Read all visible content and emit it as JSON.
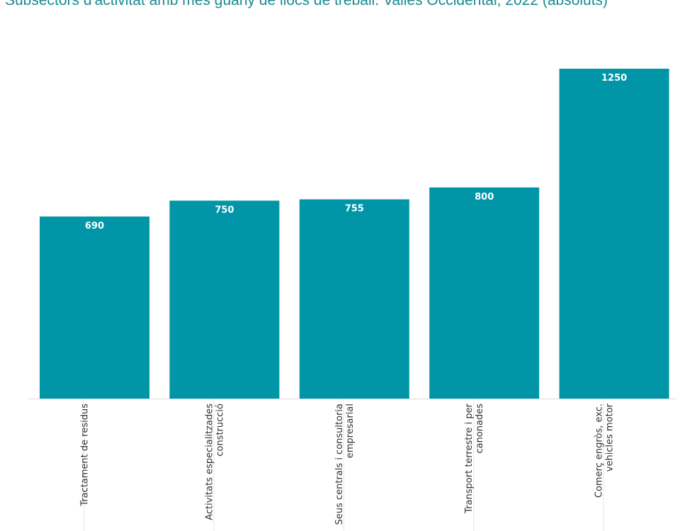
{
  "title": "Subsectors d'activitat amb més guany de llocs de treball. Vallès Occidental, 2022 (absoluts)",
  "chart_data": {
    "type": "bar",
    "title": "Subsectors d'activitat amb més guany de llocs de treball. Vallès Occidental, 2022 (absoluts)",
    "categories": [
      [
        "Tractament de residus"
      ],
      [
        "Activitats especialitzades",
        "construcció"
      ],
      [
        "Seus centrals i consultoria",
        "empresarial"
      ],
      [
        "Transport terrestre i per",
        "canonades"
      ],
      [
        "Comerç engròs, exc.",
        "vehicles motor"
      ]
    ],
    "values": [
      690,
      750,
      755,
      800,
      1250
    ],
    "ylim": [
      0,
      1250
    ],
    "grid": false,
    "colors": {
      "bar": "#0096a8",
      "title": "#1a8a94",
      "label": "#ffffff"
    }
  }
}
